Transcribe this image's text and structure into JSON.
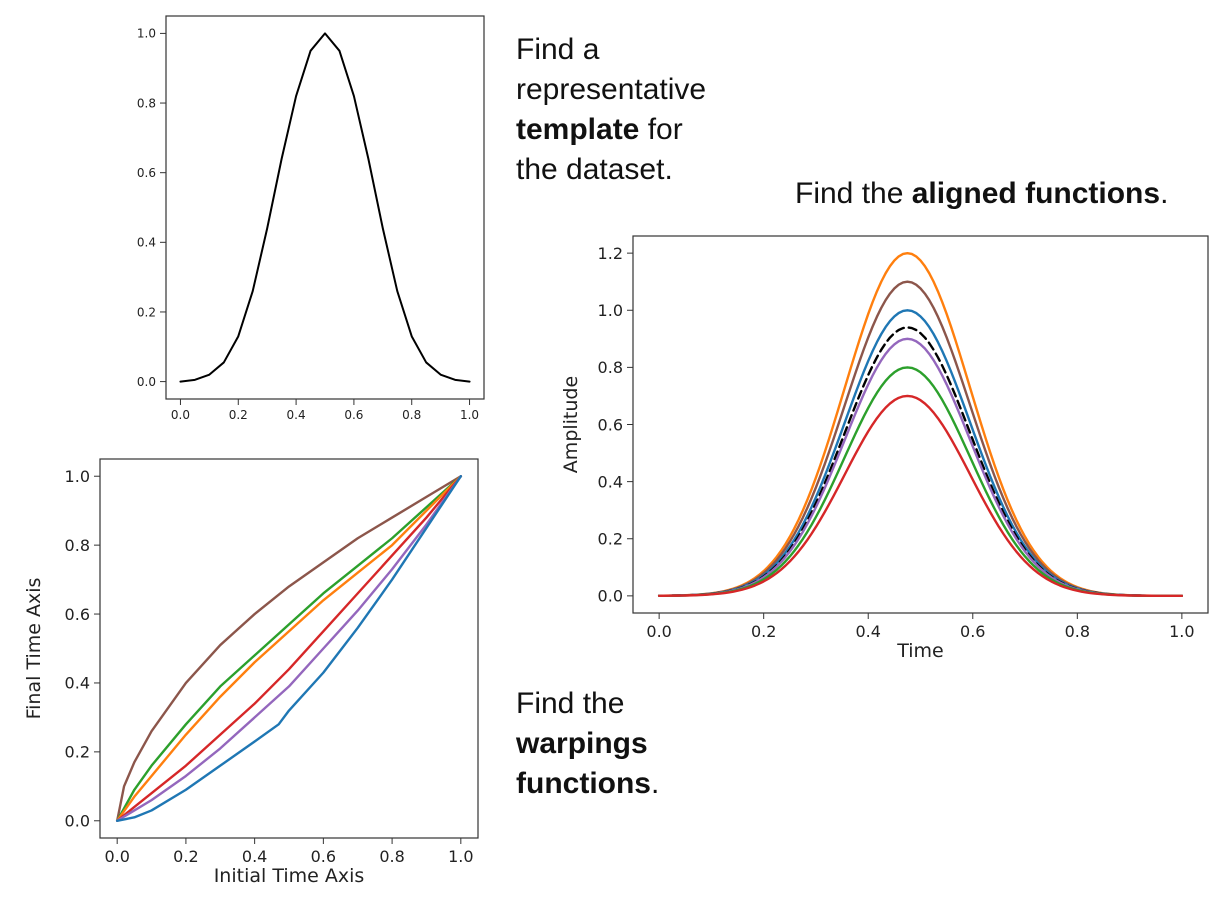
{
  "captions": {
    "template": {
      "line1": "Find a",
      "line2": "representative",
      "line3_bold": "template",
      "line3_rest": " for",
      "line4": "the dataset."
    },
    "aligned": {
      "pre": "Find the ",
      "bold": "aligned functions",
      "post": "."
    },
    "warpings": {
      "line1": "Find the",
      "line2_bold": "warpings",
      "line3_bold": "functions",
      "line3_rest": "."
    }
  },
  "chart_data": [
    {
      "id": "template",
      "type": "line",
      "xlabel": "",
      "ylabel": "",
      "xlim": [
        -0.05,
        1.05
      ],
      "ylim": [
        -0.05,
        1.05
      ],
      "xticks": [
        "0.0",
        "0.2",
        "0.4",
        "0.6",
        "0.8",
        "1.0"
      ],
      "yticks": [
        "0.0",
        "0.2",
        "0.4",
        "0.6",
        "0.8",
        "1.0"
      ],
      "grid": false,
      "series": [
        {
          "color": "#000000",
          "style": "solid",
          "x": [
            0.0,
            0.05,
            0.1,
            0.15,
            0.2,
            0.25,
            0.3,
            0.35,
            0.4,
            0.45,
            0.5,
            0.55,
            0.6,
            0.65,
            0.7,
            0.75,
            0.8,
            0.85,
            0.9,
            0.95,
            1.0
          ],
          "y": [
            0.0,
            0.005,
            0.02,
            0.055,
            0.13,
            0.26,
            0.44,
            0.64,
            0.82,
            0.95,
            1.0,
            0.95,
            0.82,
            0.64,
            0.44,
            0.26,
            0.13,
            0.055,
            0.02,
            0.005,
            0.0
          ]
        }
      ]
    },
    {
      "id": "aligned",
      "type": "line",
      "xlabel": "Time",
      "ylabel": "Amplitude",
      "xlim": [
        -0.05,
        1.05
      ],
      "ylim": [
        -0.06,
        1.26
      ],
      "xticks": [
        "0.0",
        "0.2",
        "0.4",
        "0.6",
        "0.8",
        "1.0"
      ],
      "yticks": [
        "0.0",
        "0.2",
        "0.4",
        "0.6",
        "0.8",
        "1.0",
        "1.2"
      ],
      "grid": false,
      "peak_x": 0.475,
      "series": [
        {
          "color": "#ff7f0e",
          "style": "solid",
          "amplitude": 1.2
        },
        {
          "color": "#8c564b",
          "style": "solid",
          "amplitude": 1.1
        },
        {
          "color": "#1f77b4",
          "style": "solid",
          "amplitude": 1.0
        },
        {
          "color": "#000000",
          "style": "dashed",
          "amplitude": 0.94
        },
        {
          "color": "#9467bd",
          "style": "solid",
          "amplitude": 0.9
        },
        {
          "color": "#2ca02c",
          "style": "solid",
          "amplitude": 0.8
        },
        {
          "color": "#d62728",
          "style": "solid",
          "amplitude": 0.7
        }
      ]
    },
    {
      "id": "warpings",
      "type": "line",
      "xlabel": "Initial Time Axis",
      "ylabel": "Final Time Axis",
      "xlim": [
        -0.05,
        1.05
      ],
      "ylim": [
        -0.05,
        1.05
      ],
      "xticks": [
        "0.0",
        "0.2",
        "0.4",
        "0.6",
        "0.8",
        "1.0"
      ],
      "yticks": [
        "0.0",
        "0.2",
        "0.4",
        "0.6",
        "0.8",
        "1.0"
      ],
      "grid": false,
      "series": [
        {
          "color": "#8c564b",
          "x": [
            0,
            0.02,
            0.05,
            0.1,
            0.2,
            0.3,
            0.4,
            0.5,
            0.6,
            0.7,
            0.8,
            0.9,
            1.0
          ],
          "y": [
            0,
            0.1,
            0.17,
            0.26,
            0.4,
            0.51,
            0.6,
            0.68,
            0.75,
            0.82,
            0.88,
            0.94,
            1.0
          ]
        },
        {
          "color": "#2ca02c",
          "x": [
            0,
            0.05,
            0.1,
            0.2,
            0.3,
            0.4,
            0.5,
            0.6,
            0.7,
            0.8,
            0.9,
            1.0
          ],
          "y": [
            0,
            0.09,
            0.16,
            0.28,
            0.39,
            0.48,
            0.57,
            0.66,
            0.74,
            0.82,
            0.91,
            1.0
          ]
        },
        {
          "color": "#ff7f0e",
          "x": [
            0,
            0.05,
            0.1,
            0.2,
            0.3,
            0.4,
            0.5,
            0.6,
            0.7,
            0.8,
            0.9,
            1.0
          ],
          "y": [
            0,
            0.07,
            0.13,
            0.25,
            0.36,
            0.46,
            0.55,
            0.64,
            0.72,
            0.8,
            0.9,
            1.0
          ]
        },
        {
          "color": "#d62728",
          "x": [
            0,
            0.05,
            0.1,
            0.2,
            0.3,
            0.4,
            0.5,
            0.6,
            0.7,
            0.8,
            0.9,
            1.0
          ],
          "y": [
            0,
            0.04,
            0.08,
            0.16,
            0.25,
            0.34,
            0.44,
            0.55,
            0.66,
            0.77,
            0.88,
            1.0
          ]
        },
        {
          "color": "#9467bd",
          "x": [
            0,
            0.05,
            0.1,
            0.2,
            0.3,
            0.4,
            0.5,
            0.6,
            0.7,
            0.8,
            0.9,
            1.0
          ],
          "y": [
            0,
            0.03,
            0.06,
            0.13,
            0.21,
            0.3,
            0.39,
            0.5,
            0.61,
            0.73,
            0.86,
            1.0
          ]
        },
        {
          "color": "#1f77b4",
          "x": [
            0,
            0.05,
            0.1,
            0.2,
            0.3,
            0.4,
            0.47,
            0.5,
            0.6,
            0.7,
            0.8,
            0.9,
            1.0
          ],
          "y": [
            0,
            0.01,
            0.03,
            0.09,
            0.16,
            0.23,
            0.28,
            0.32,
            0.43,
            0.56,
            0.7,
            0.85,
            1.0
          ]
        }
      ]
    }
  ]
}
